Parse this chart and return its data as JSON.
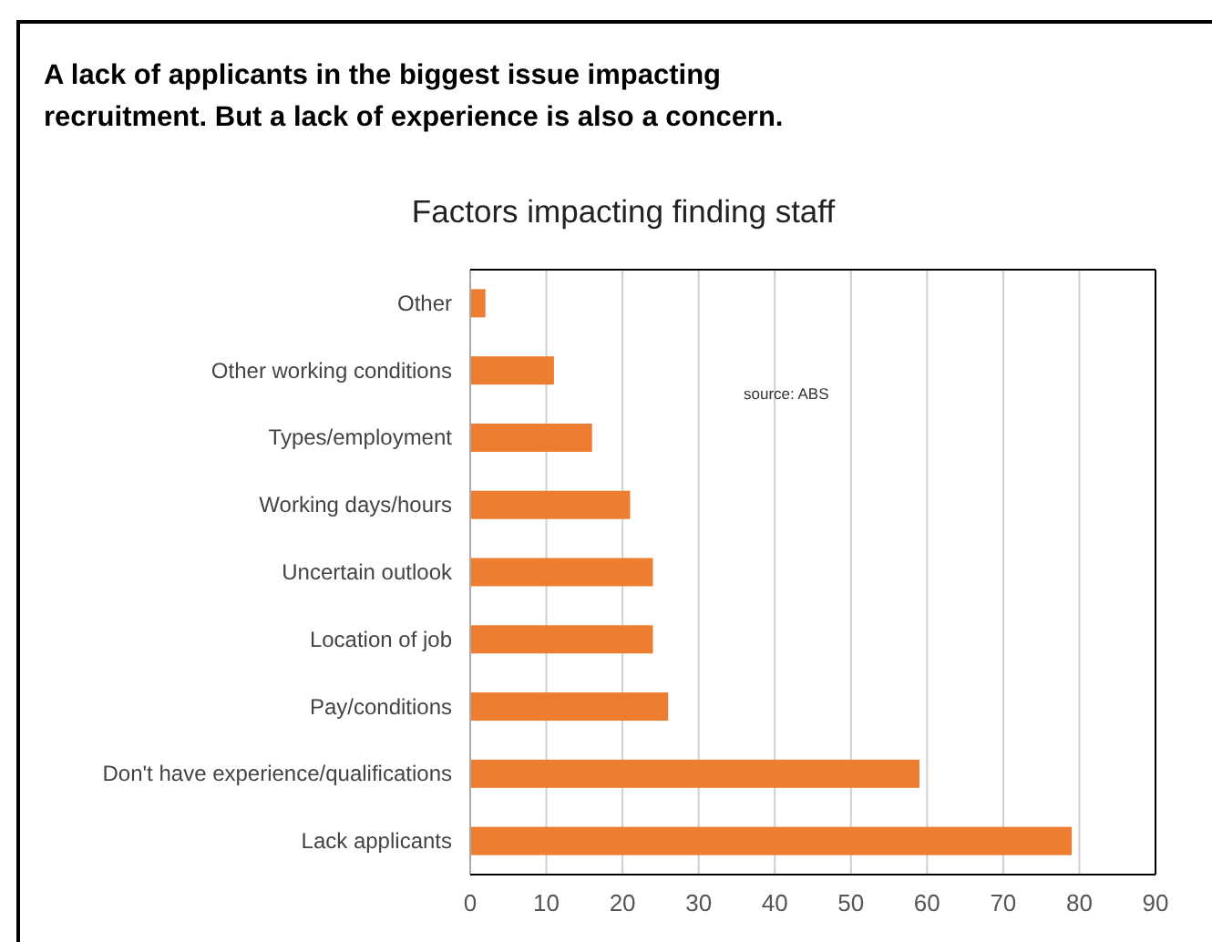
{
  "chart_data": {
    "type": "bar",
    "orientation": "horizontal",
    "subtitle": "A lack of applicants in the biggest issue impacting recruitment. But a lack of experience is also a concern.",
    "title": "Factors impacting finding staff",
    "categories": [
      "Other",
      "Other working conditions",
      "Types/employment",
      "Working days/hours",
      "Uncertain outlook",
      "Location of job",
      "Pay/conditions",
      "Don't have experience/qualifications",
      "Lack applicants"
    ],
    "values": [
      2,
      11,
      16,
      21,
      24,
      24,
      26,
      59,
      79
    ],
    "color": "#ed7d31",
    "xlim": [
      0,
      90
    ],
    "xticks": [
      0,
      10,
      20,
      30,
      40,
      50,
      60,
      70,
      80,
      90
    ],
    "grid": "x",
    "annotations": [
      "source:  ABS"
    ]
  }
}
